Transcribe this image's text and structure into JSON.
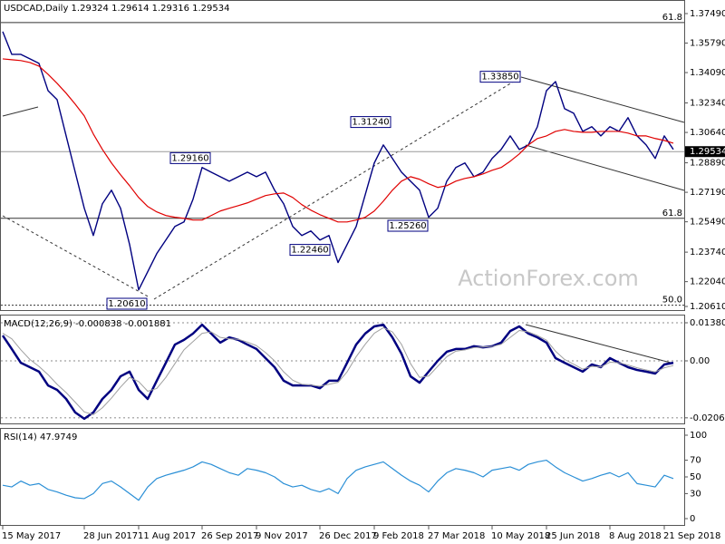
{
  "chart_data": [
    {
      "type": "line",
      "title": "USDCAD,Daily  1.29324 1.29614 1.29316 1.29534",
      "watermark": "ActionForex.com",
      "ylim": [
        1.20349,
        1.38273
      ],
      "yticks": [
        {
          "value": 1.3749,
          "label": "1.37490"
        },
        {
          "value": 1.3579,
          "label": "1.35790"
        },
        {
          "value": 1.3409,
          "label": "1.34090"
        },
        {
          "value": 1.3234,
          "label": "1.32340"
        },
        {
          "value": 1.3064,
          "label": "1.30640"
        },
        {
          "value": 1.2889,
          "label": "1.28890"
        },
        {
          "value": 1.2719,
          "label": "1.27190"
        },
        {
          "value": 1.2549,
          "label": "1.25490"
        },
        {
          "value": 1.2374,
          "label": "1.23740"
        },
        {
          "value": 1.2204,
          "label": "1.22040"
        },
        {
          "value": 1.2061,
          "label": "1.20610"
        }
      ],
      "current_price": {
        "value": 1.29534,
        "label": "1.29534"
      },
      "annotations": [
        {
          "value": 1.3385,
          "label": "1.33850"
        },
        {
          "value": 1.3124,
          "label": "1.31240"
        },
        {
          "value": 1.2916,
          "label": "1.29160"
        },
        {
          "value": 1.2246,
          "label": "1.22460"
        },
        {
          "value": 1.2526,
          "label": "1.25260"
        },
        {
          "value": 1.2061,
          "label": "1.20610"
        }
      ],
      "levels": [
        {
          "value": 1.3697,
          "label": "61.8"
        },
        {
          "value": 1.2569,
          "label": "61.8"
        },
        {
          "value": 1.2068,
          "label": "50.0"
        }
      ],
      "series": [
        {
          "color": "#000080",
          "values": [
            1.3645,
            1.3514,
            1.3514,
            1.3488,
            1.3462,
            1.3305,
            1.3253,
            1.3044,
            1.2835,
            1.2627,
            1.247,
            1.2653,
            1.2731,
            1.2627,
            1.2418,
            1.2157,
            1.2261,
            1.2366,
            1.2444,
            1.2522,
            1.2548,
            1.2679,
            1.2862,
            1.2835,
            1.2809,
            1.2783,
            1.2809,
            1.2835,
            1.2809,
            1.2835,
            1.2731,
            1.2653,
            1.2522,
            1.247,
            1.2496,
            1.2444,
            1.247,
            1.2314,
            1.2418,
            1.2522,
            1.2705,
            1.2888,
            1.2992,
            1.2914,
            1.2835,
            1.2783,
            1.2731,
            1.2575,
            1.2627,
            1.2783,
            1.2862,
            1.2888,
            1.2809,
            1.2835,
            1.2914,
            1.2966,
            1.3044,
            1.2966,
            1.2992,
            1.3097,
            1.3305,
            1.3357,
            1.3201,
            1.3175,
            1.307,
            1.3097,
            1.3044,
            1.3097,
            1.307,
            1.3149,
            1.3044,
            1.2992,
            1.2914,
            1.3044,
            1.2966
          ]
        },
        {
          "color": "#e00000",
          "values": [
            1.3488,
            1.3483,
            1.3478,
            1.3467,
            1.3446,
            1.3399,
            1.3347,
            1.329,
            1.3227,
            1.3159,
            1.3055,
            1.2966,
            1.2888,
            1.282,
            1.2757,
            1.2689,
            1.2637,
            1.2606,
            1.2585,
            1.2575,
            1.2569,
            1.2559,
            1.2559,
            1.2585,
            1.2611,
            1.2627,
            1.2642,
            1.2658,
            1.2679,
            1.27,
            1.271,
            1.2715,
            1.2689,
            1.2648,
            1.2616,
            1.259,
            1.2569,
            1.2548,
            1.2548,
            1.2559,
            1.2575,
            1.2611,
            1.2668,
            1.2731,
            1.2783,
            1.2809,
            1.2794,
            1.2768,
            1.2747,
            1.2757,
            1.2783,
            1.2799,
            1.2809,
            1.2825,
            1.2846,
            1.2862,
            1.2898,
            1.294,
            1.2992,
            1.3029,
            1.3044,
            1.307,
            1.3081,
            1.307,
            1.3065,
            1.3065,
            1.307,
            1.307,
            1.307,
            1.306,
            1.3044,
            1.3044,
            1.3029,
            1.3018,
            1.3002
          ]
        }
      ]
    },
    {
      "type": "line",
      "title": "MACD(12,26,9) -0.000838 -0.001881",
      "ylim": [
        -0.023,
        0.016431
      ],
      "yticks": [
        0.013802,
        {
          "value": 0,
          "label": "0.00"
        },
        -0.020648
      ],
      "grid": true,
      "series": [
        {
          "color": "#000080",
          "values": [
            0.0092,
            0.0043,
            -0.0007,
            -0.0023,
            -0.0039,
            -0.0089,
            -0.0105,
            -0.0138,
            -0.0187,
            -0.021,
            -0.0187,
            -0.0138,
            -0.0105,
            -0.0056,
            -0.0039,
            -0.0105,
            -0.0138,
            -0.0072,
            -0.0007,
            0.0059,
            0.0076,
            0.0099,
            0.0131,
            0.0099,
            0.0066,
            0.0085,
            0.0076,
            0.0059,
            0.0043,
            0.001,
            -0.0023,
            -0.0072,
            -0.0089,
            -0.0089,
            -0.0089,
            -0.0099,
            -0.0072,
            -0.0072,
            -0.0007,
            0.0059,
            0.0099,
            0.0125,
            0.0131,
            0.0085,
            0.0026,
            -0.0056,
            -0.0079,
            -0.0039,
            0,
            0.0033,
            0.0043,
            0.0043,
            0.0053,
            0.0049,
            0.0053,
            0.0066,
            0.0108,
            0.0125,
            0.0099,
            0.0085,
            0.0066,
            0.001,
            -0.0007,
            -0.0023,
            -0.0039,
            -0.0013,
            -0.0023,
            0.001,
            -0.0007,
            -0.0023,
            -0.0033,
            -0.0039,
            -0.0046,
            -0.0013,
            -0.0007
          ]
        },
        {
          "color": "#a0a0a0",
          "values": [
            0.01,
            0.008,
            0.004,
            0.0005,
            -0.002,
            -0.005,
            -0.0085,
            -0.0115,
            -0.015,
            -0.0185,
            -0.0195,
            -0.017,
            -0.0135,
            -0.0095,
            -0.006,
            -0.0075,
            -0.011,
            -0.01,
            -0.006,
            -0.001,
            0.004,
            0.007,
            0.01,
            0.0105,
            0.0085,
            0.008,
            0.0078,
            0.0068,
            0.0055,
            0.003,
            0,
            -0.004,
            -0.007,
            -0.0085,
            -0.0088,
            -0.0092,
            -0.0085,
            -0.0078,
            -0.004,
            0.0015,
            0.006,
            0.01,
            0.012,
            0.0105,
            0.006,
            -0.001,
            -0.006,
            -0.0055,
            -0.002,
            0.0015,
            0.0035,
            0.004,
            0.0048,
            0.005,
            0.0052,
            0.006,
            0.0085,
            0.011,
            0.0105,
            0.0092,
            0.0075,
            0.0035,
            0.0005,
            -0.0012,
            -0.003,
            -0.002,
            -0.0022,
            -0.0005,
            -0.0007,
            -0.0015,
            -0.0025,
            -0.0033,
            -0.004,
            -0.0025,
            -0.0017
          ]
        }
      ]
    },
    {
      "type": "line",
      "title": "RSI(14) 47.9749",
      "ylim": [
        -8.7,
        107.6
      ],
      "yticks": [
        100,
        70,
        50,
        30,
        0
      ],
      "categories": [
        "15 May 2017",
        null,
        null,
        null,
        null,
        null,
        null,
        null,
        null,
        "28 Jun 2017",
        null,
        null,
        null,
        null,
        null,
        "11 Aug 2017",
        null,
        null,
        null,
        null,
        null,
        null,
        "26 Sep 2017",
        null,
        null,
        null,
        null,
        null,
        "9 Nov 2017",
        null,
        null,
        null,
        null,
        null,
        null,
        "26 Dec 2017",
        null,
        null,
        null,
        null,
        null,
        "9 Feb 2018",
        null,
        null,
        null,
        null,
        null,
        "27 Mar 2018",
        null,
        null,
        null,
        null,
        null,
        null,
        "10 May 2018",
        null,
        null,
        null,
        null,
        null,
        "25 Jun 2018",
        null,
        null,
        null,
        null,
        null,
        null,
        "8 Aug 2018",
        null,
        null,
        null,
        null,
        null,
        "21 Sep 2018",
        null
      ],
      "series": [
        {
          "color": "#2a8fd6",
          "values": [
            40,
            38,
            45,
            40,
            42,
            35,
            32,
            28,
            25,
            24,
            30,
            42,
            45,
            38,
            30,
            22,
            38,
            48,
            52,
            55,
            58,
            62,
            68,
            65,
            60,
            55,
            52,
            60,
            58,
            55,
            50,
            42,
            38,
            40,
            35,
            32,
            36,
            30,
            48,
            58,
            62,
            65,
            68,
            60,
            52,
            45,
            40,
            32,
            45,
            55,
            60,
            58,
            55,
            50,
            58,
            60,
            62,
            58,
            65,
            68,
            70,
            62,
            55,
            50,
            45,
            48,
            52,
            55,
            50,
            55,
            42,
            40,
            38,
            52,
            48
          ]
        }
      ]
    }
  ]
}
